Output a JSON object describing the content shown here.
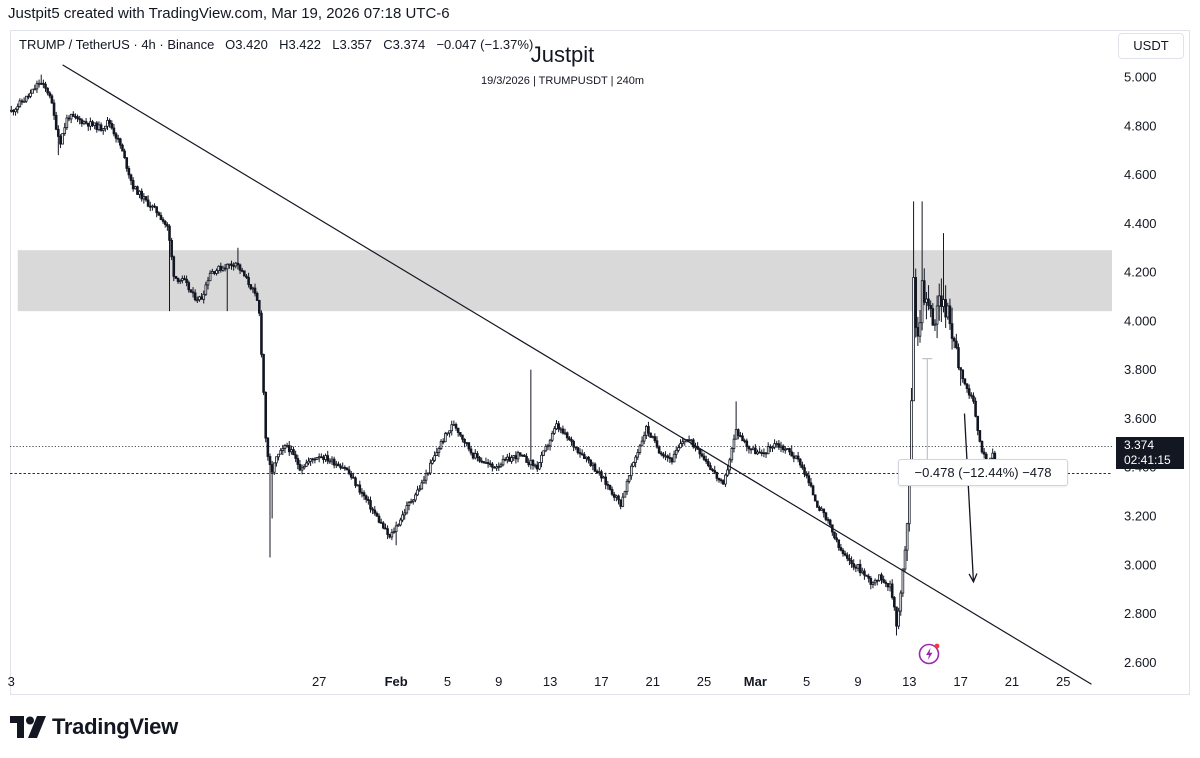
{
  "header": {
    "caption": "Justpit5 created with TradingView.com, Mar 19, 2026 07:18 UTC-6"
  },
  "legend": {
    "symbol": "TRUMP / TetherUS · 4h · Binance",
    "open_label": "O",
    "open": "3.420",
    "high_label": "H",
    "high": "3.422",
    "low_label": "L",
    "low": "3.357",
    "close_label": "C",
    "close": "3.374",
    "change": "−0.047 (−1.37%)"
  },
  "watermark": {
    "title": "Justpit",
    "subtitle": "19/3/2026 | TRUMPUSDT | 240m"
  },
  "currency_button": "USDT",
  "price_tag": {
    "price": "3.374",
    "countdown": "02:41:15"
  },
  "measure_label": "−0.478 (−12.44%) −478",
  "brand": {
    "name": "TradingView"
  },
  "colors": {
    "candle": "#131722",
    "zone": "#d9d9d9",
    "background": "#ffffff",
    "flash_icon": "#9c27b0",
    "tag": "#131722"
  },
  "icons": {
    "flash": "lightning-icon",
    "logo": "tradingview-logo-icon"
  },
  "chart_data": {
    "type": "candlestick",
    "timeframe": "4h",
    "y_axis": {
      "ticks": [
        "5.000",
        "4.800",
        "4.600",
        "4.400",
        "4.200",
        "4.000",
        "3.800",
        "3.600",
        "3.400",
        "3.200",
        "3.000",
        "2.800",
        "2.600"
      ],
      "ylim": [
        2.47,
        5.07
      ]
    },
    "x_axis": {
      "ticks": [
        {
          "label": "3",
          "day": -29
        },
        {
          "label": "27",
          "day": -5
        },
        {
          "label": "Feb",
          "day": 1,
          "bold": true
        },
        {
          "label": "5",
          "day": 5
        },
        {
          "label": "9",
          "day": 9
        },
        {
          "label": "13",
          "day": 13
        },
        {
          "label": "17",
          "day": 17
        },
        {
          "label": "21",
          "day": 21
        },
        {
          "label": "25",
          "day": 25
        },
        {
          "label": "Mar",
          "day": 29,
          "bold": true
        },
        {
          "label": "5",
          "day": 33
        },
        {
          "label": "9",
          "day": 37
        },
        {
          "label": "13",
          "day": 41
        },
        {
          "label": "17",
          "day": 45
        },
        {
          "label": "21",
          "day": 49
        },
        {
          "label": "25",
          "day": 53
        }
      ],
      "xlim": [
        -29.1,
        56.8
      ]
    },
    "resistance_zone": {
      "y_low": 4.04,
      "y_high": 4.29,
      "day_start": -28.5,
      "day_end": 56.8
    },
    "trendline": {
      "start": {
        "day": -25.0,
        "y": 5.05
      },
      "end": {
        "day": 55.2,
        "y": 2.51
      }
    },
    "horizontal_lines": [
      {
        "y": 3.485,
        "style": "dotted"
      },
      {
        "y": 3.374,
        "style": "dashed"
      }
    ],
    "measure_bar": {
      "day": 42.4,
      "y_top": 3.845,
      "y_bottom": 3.367
    },
    "forecast_arrow": {
      "start": {
        "day": 45.3,
        "y": 3.62
      },
      "end": {
        "day": 46.0,
        "y": 2.93
      }
    },
    "anchors": [
      {
        "day": -29.0,
        "price": 4.86
      },
      {
        "day": -27.5,
        "price": 4.93
      },
      {
        "day": -26.8,
        "price": 4.98
      },
      {
        "day": -26.0,
        "price": 4.93
      },
      {
        "day": -25.6,
        "price": 4.82
      },
      {
        "day": -25.2,
        "price": 4.73
      },
      {
        "day": -24.6,
        "price": 4.84
      },
      {
        "day": -23.0,
        "price": 4.81
      },
      {
        "day": -22.0,
        "price": 4.79
      },
      {
        "day": -21.4,
        "price": 4.82
      },
      {
        "day": -20.5,
        "price": 4.72
      },
      {
        "day": -19.5,
        "price": 4.55
      },
      {
        "day": -18.5,
        "price": 4.49
      },
      {
        "day": -17.5,
        "price": 4.44
      },
      {
        "day": -16.8,
        "price": 4.38
      },
      {
        "day": -16.3,
        "price": 4.18
      },
      {
        "day": -15.5,
        "price": 4.16
      },
      {
        "day": -14.8,
        "price": 4.1
      },
      {
        "day": -14.2,
        "price": 4.09
      },
      {
        "day": -13.5,
        "price": 4.2
      },
      {
        "day": -12.5,
        "price": 4.22
      },
      {
        "day": -11.5,
        "price": 4.24
      },
      {
        "day": -10.8,
        "price": 4.18
      },
      {
        "day": -10.2,
        "price": 4.13
      },
      {
        "day": -9.7,
        "price": 4.06
      },
      {
        "day": -9.4,
        "price": 3.78
      },
      {
        "day": -9.1,
        "price": 3.45
      },
      {
        "day": -8.7,
        "price": 3.38
      },
      {
        "day": -8.3,
        "price": 3.44
      },
      {
        "day": -7.5,
        "price": 3.49
      },
      {
        "day": -6.5,
        "price": 3.4
      },
      {
        "day": -5.0,
        "price": 3.45
      },
      {
        "day": -3.0,
        "price": 3.4
      },
      {
        "day": -1.5,
        "price": 3.28
      },
      {
        "day": 0.5,
        "price": 3.11
      },
      {
        "day": 2.0,
        "price": 3.25
      },
      {
        "day": 3.0,
        "price": 3.33
      },
      {
        "day": 4.5,
        "price": 3.5
      },
      {
        "day": 5.5,
        "price": 3.58
      },
      {
        "day": 7.0,
        "price": 3.45
      },
      {
        "day": 8.5,
        "price": 3.4
      },
      {
        "day": 10.5,
        "price": 3.45
      },
      {
        "day": 12.0,
        "price": 3.4
      },
      {
        "day": 13.5,
        "price": 3.57
      },
      {
        "day": 15.0,
        "price": 3.48
      },
      {
        "day": 16.0,
        "price": 3.43
      },
      {
        "day": 17.0,
        "price": 3.36
      },
      {
        "day": 18.5,
        "price": 3.25
      },
      {
        "day": 19.5,
        "price": 3.42
      },
      {
        "day": 20.5,
        "price": 3.56
      },
      {
        "day": 21.5,
        "price": 3.47
      },
      {
        "day": 22.5,
        "price": 3.43
      },
      {
        "day": 23.5,
        "price": 3.52
      },
      {
        "day": 24.5,
        "price": 3.48
      },
      {
        "day": 25.5,
        "price": 3.4
      },
      {
        "day": 26.5,
        "price": 3.32
      },
      {
        "day": 27.5,
        "price": 3.55
      },
      {
        "day": 28.5,
        "price": 3.48
      },
      {
        "day": 29.5,
        "price": 3.45
      },
      {
        "day": 30.5,
        "price": 3.5
      },
      {
        "day": 31.5,
        "price": 3.47
      },
      {
        "day": 32.5,
        "price": 3.42
      },
      {
        "day": 33.0,
        "price": 3.36
      },
      {
        "day": 33.8,
        "price": 3.25
      },
      {
        "day": 34.8,
        "price": 3.16
      },
      {
        "day": 35.5,
        "price": 3.07
      },
      {
        "day": 36.3,
        "price": 3.01
      },
      {
        "day": 37.0,
        "price": 2.99
      },
      {
        "day": 38.0,
        "price": 2.93
      },
      {
        "day": 38.8,
        "price": 2.95
      },
      {
        "day": 39.5,
        "price": 2.91
      },
      {
        "day": 39.8,
        "price": 2.84
      },
      {
        "day": 40.0,
        "price": 2.76
      },
      {
        "day": 40.3,
        "price": 2.86
      },
      {
        "day": 40.6,
        "price": 3.04
      },
      {
        "day": 40.8,
        "price": 3.1
      },
      {
        "day": 41.0,
        "price": 3.35
      },
      {
        "day": 41.15,
        "price": 3.63
      },
      {
        "day": 41.3,
        "price": 4.25
      },
      {
        "day": 41.6,
        "price": 3.88
      },
      {
        "day": 42.0,
        "price": 4.15
      },
      {
        "day": 42.5,
        "price": 4.05
      },
      {
        "day": 43.0,
        "price": 4.0
      },
      {
        "day": 43.5,
        "price": 4.1
      },
      {
        "day": 44.0,
        "price": 4.02
      },
      {
        "day": 44.5,
        "price": 3.93
      },
      {
        "day": 45.0,
        "price": 3.8
      },
      {
        "day": 45.5,
        "price": 3.72
      },
      {
        "day": 46.0,
        "price": 3.66
      },
      {
        "day": 46.5,
        "price": 3.5
      },
      {
        "day": 47.0,
        "price": 3.42
      },
      {
        "day": 47.5,
        "price": 3.45
      },
      {
        "day": 48.0,
        "price": 3.374
      }
    ],
    "spikes": [
      {
        "day": -26.7,
        "high": 5.01
      },
      {
        "day": -25.4,
        "low": 4.68
      },
      {
        "day": -16.6,
        "low": 4.04
      },
      {
        "day": -12.2,
        "low": 4.04
      },
      {
        "day": -11.3,
        "high": 4.3
      },
      {
        "day": -8.9,
        "low": 3.03
      },
      {
        "day": -8.6,
        "low": 3.19
      },
      {
        "day": 1.0,
        "low": 3.08
      },
      {
        "day": 11.5,
        "high": 3.8
      },
      {
        "day": 27.5,
        "high": 3.67
      },
      {
        "day": 31.8,
        "high": 3.49
      },
      {
        "day": 40.0,
        "low": 2.71
      },
      {
        "day": 41.3,
        "high": 4.49
      },
      {
        "day": 42.0,
        "high": 4.49
      },
      {
        "day": 43.7,
        "high": 4.36
      }
    ]
  }
}
